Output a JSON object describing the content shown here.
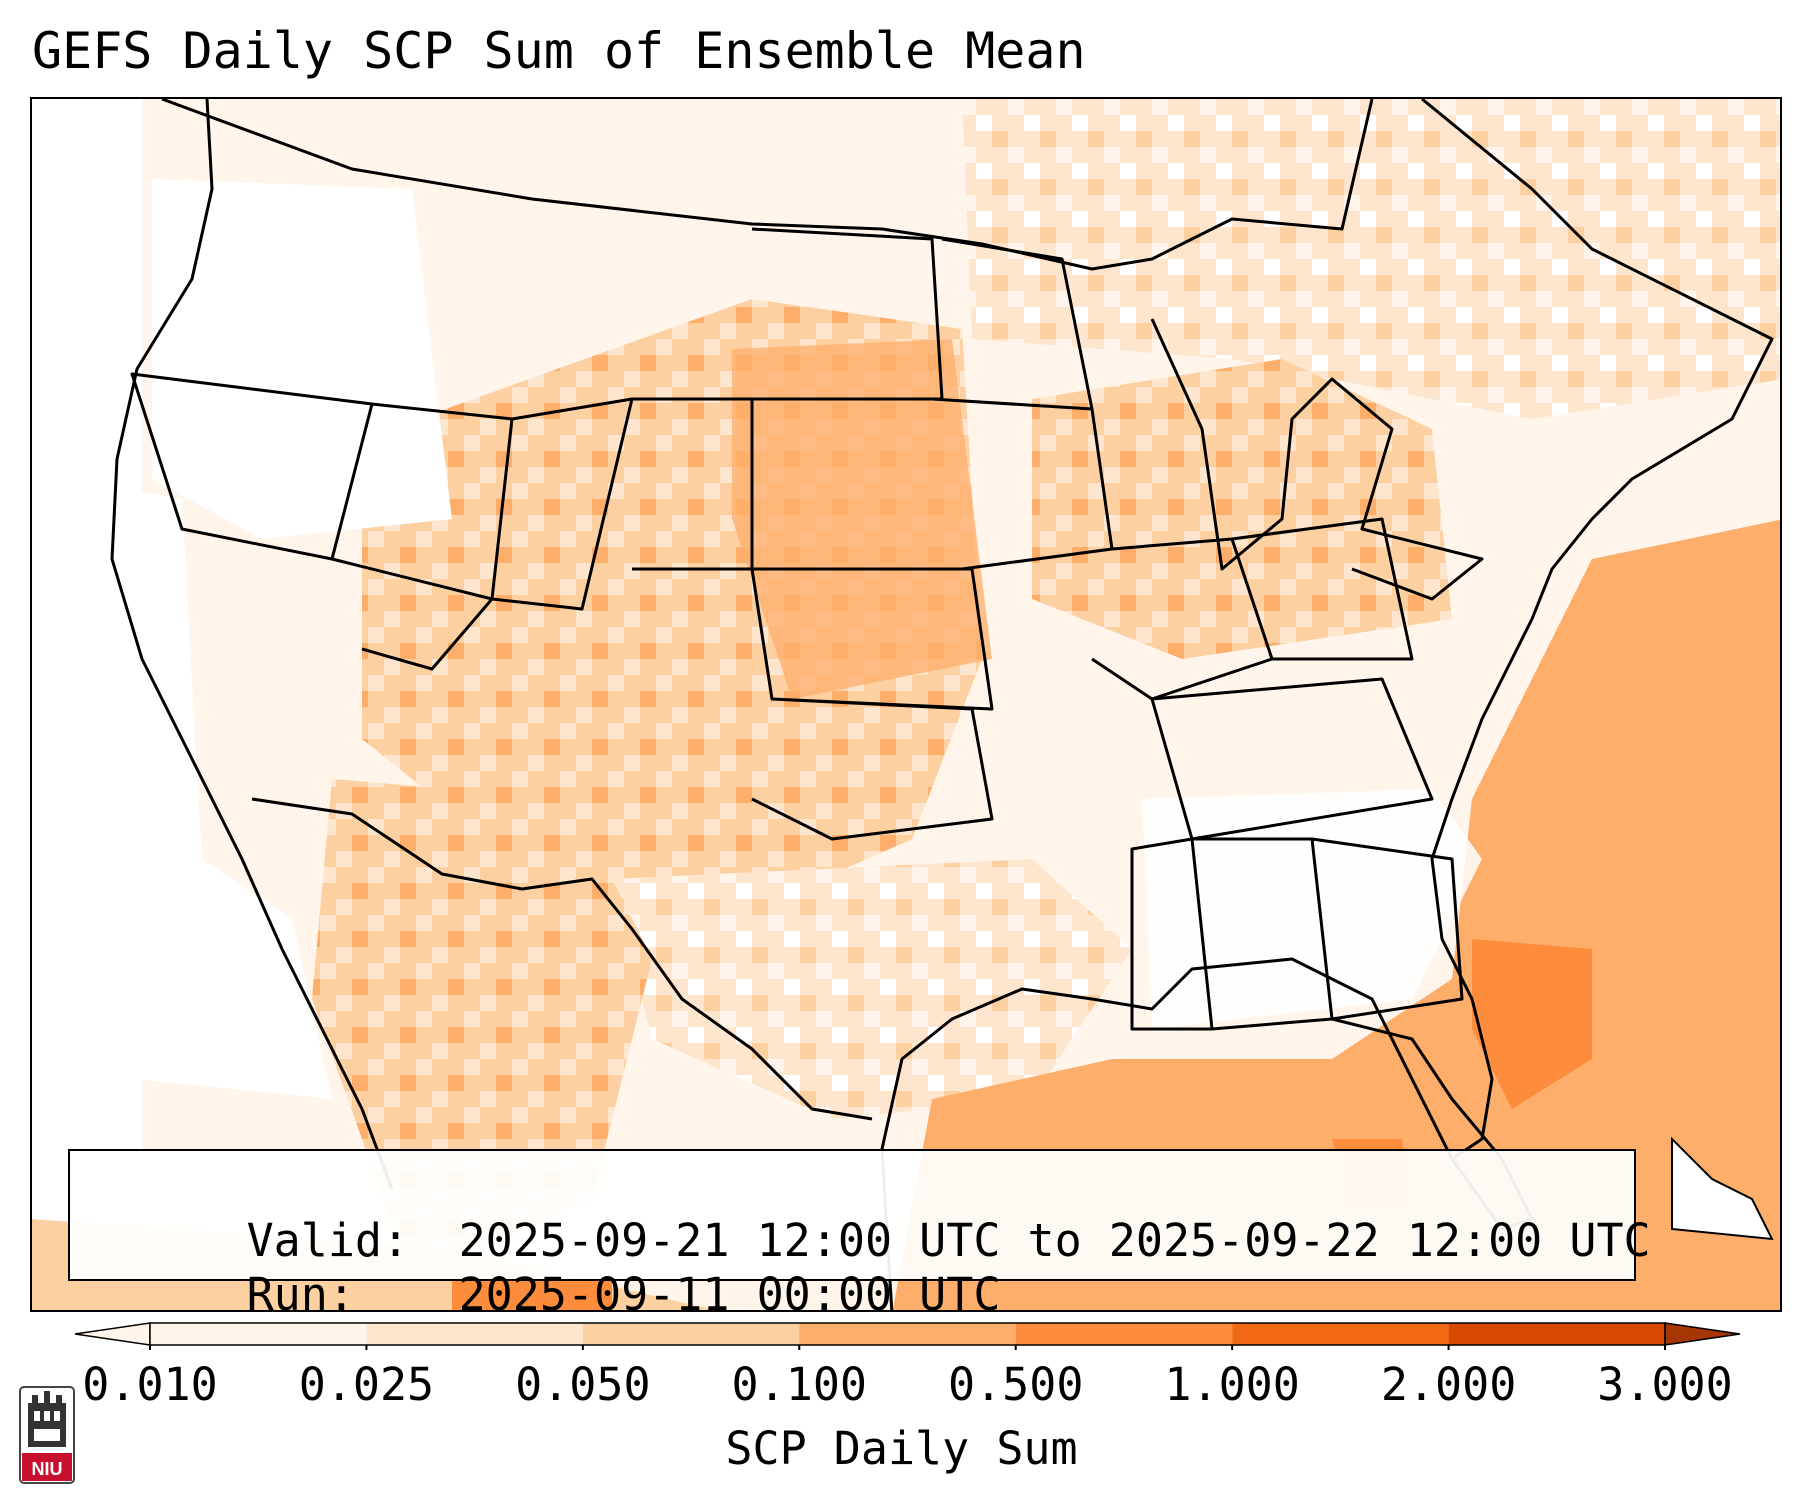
{
  "title": "GEFS Daily SCP Sum of Ensemble Mean",
  "info": {
    "valid_label": "Valid:",
    "valid_value": "2025-09-21 12:00 UTC to 2025-09-22 12:00 UTC",
    "run_label": "Run:",
    "run_value": "2025-09-11 00:00 UTC"
  },
  "colorbar": {
    "label": "SCP Daily Sum",
    "ticks": [
      "0.010",
      "0.025",
      "0.050",
      "0.100",
      "0.500",
      "1.000",
      "2.000",
      "3.000"
    ],
    "colors": [
      "#fff5eb",
      "#fee6ce",
      "#fdd0a2",
      "#fdae6b",
      "#fd8d3c",
      "#f16913",
      "#d94801",
      "#a63603"
    ],
    "extend": "both"
  },
  "logo": {
    "text": "NIU"
  },
  "colors": {
    "map_lines": "#000000",
    "shade_lightest": "#fff5eb",
    "shade_light": "#fee6ce",
    "shade_medium": "#fdd0a2",
    "shade_strong": "#fdae6b",
    "shade_stronger": "#fd8d3c"
  }
}
